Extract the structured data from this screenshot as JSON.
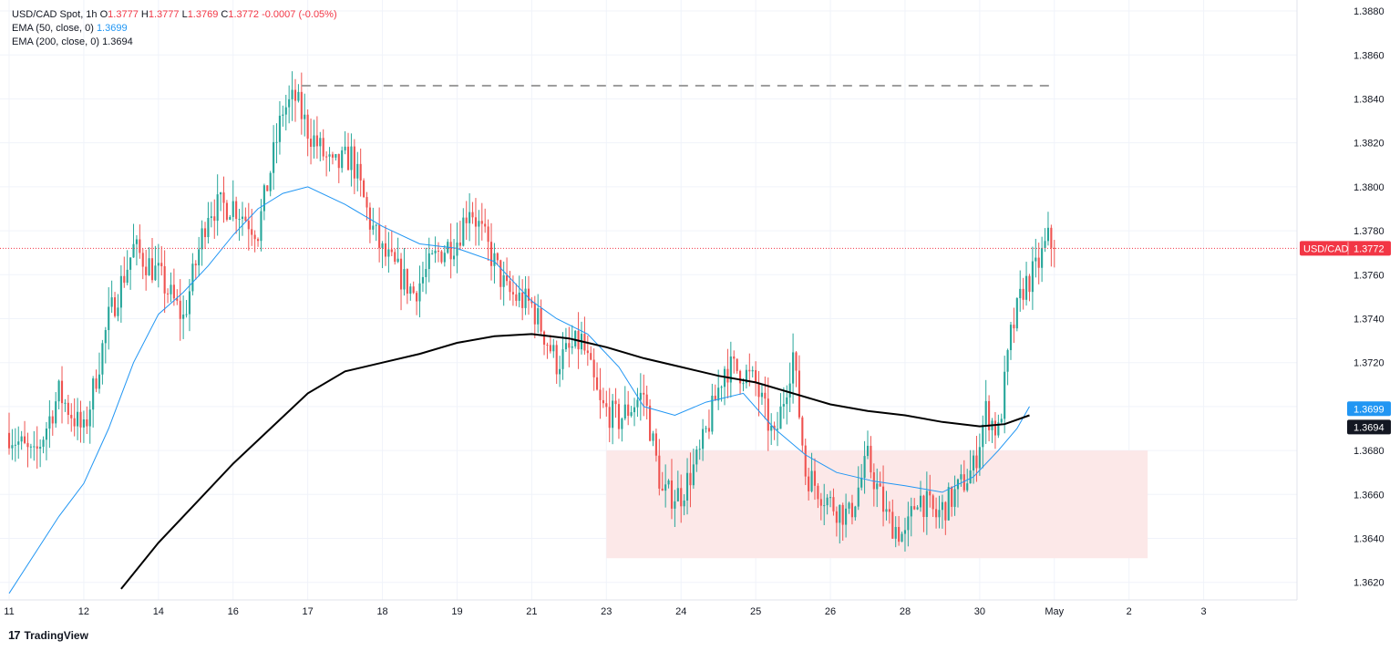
{
  "legend": {
    "symbol": "USD/CAD Spot, 1h",
    "o_label": "O",
    "o": "1.3777",
    "h_label": "H",
    "h": "1.3777",
    "l_label": "L",
    "l": "1.3769",
    "c_label": "C",
    "c": "1.3772",
    "change": "-0.0007 (-0.05%)",
    "ema50": "EMA (50, close, 0)",
    "ema50_value": "1.3699",
    "ema200": "EMA (200, close, 0)",
    "ema200_value": "1.3694"
  },
  "brand": {
    "name": "TradingView",
    "logo": "17"
  },
  "colors": {
    "up": "#26a69a",
    "down": "#ef5350",
    "ema50": "#2196f3",
    "ema200": "#000000",
    "price_line": "#f23645",
    "zone": "#fce8e8",
    "grid": "#f0f3fa",
    "resistance": "#9e9e9e"
  },
  "chart_data": {
    "type": "candlestick",
    "y_ticks": [
      "1.3620",
      "1.3640",
      "1.3660",
      "1.3680",
      "1.3700",
      "1.3720",
      "1.3740",
      "1.3760",
      "1.3780",
      "1.3800",
      "1.3820",
      "1.3840",
      "1.3860",
      "1.3880"
    ],
    "ylim": [
      1.3612,
      1.3885
    ],
    "x_ticks": [
      "11",
      "12",
      "14",
      "16",
      "17",
      "18",
      "19",
      "21",
      "23",
      "24",
      "25",
      "26",
      "28",
      "30",
      "May",
      "2",
      "3"
    ],
    "x_tick_index": [
      0,
      24,
      48,
      72,
      96,
      120,
      144,
      168,
      192,
      216,
      240,
      264,
      288,
      312,
      336,
      360,
      384
    ],
    "last_price": {
      "label": "USD/CAD",
      "value": "1.3772",
      "y": 1.3772
    },
    "ema50_tag": {
      "value": "1.3699",
      "y": 1.3699
    },
    "ema200_tag": {
      "value": "1.3694",
      "y": 1.3694
    },
    "resistance_level": {
      "y": 1.3846,
      "x_from": 94,
      "x_to": 336
    },
    "support_zone": {
      "y_from": 1.3631,
      "y_to": 1.368,
      "x_from": 192,
      "x_to": 366
    },
    "price_path": [
      [
        0,
        1.3688
      ],
      [
        8,
        1.3676
      ],
      [
        16,
        1.3706
      ],
      [
        24,
        1.3688
      ],
      [
        32,
        1.374
      ],
      [
        40,
        1.3772
      ],
      [
        48,
        1.376
      ],
      [
        56,
        1.374
      ],
      [
        64,
        1.379
      ],
      [
        72,
        1.3792
      ],
      [
        80,
        1.378
      ],
      [
        88,
        1.3835
      ],
      [
        92,
        1.384
      ],
      [
        96,
        1.3826
      ],
      [
        104,
        1.3808
      ],
      [
        110,
        1.3814
      ],
      [
        116,
        1.3784
      ],
      [
        120,
        1.377
      ],
      [
        130,
        1.3752
      ],
      [
        138,
        1.377
      ],
      [
        144,
        1.3776
      ],
      [
        148,
        1.3792
      ],
      [
        154,
        1.3772
      ],
      [
        160,
        1.3752
      ],
      [
        168,
        1.3746
      ],
      [
        176,
        1.372
      ],
      [
        184,
        1.373
      ],
      [
        190,
        1.37
      ],
      [
        196,
        1.3694
      ],
      [
        204,
        1.3706
      ],
      [
        210,
        1.366
      ],
      [
        216,
        1.366
      ],
      [
        222,
        1.3678
      ],
      [
        230,
        1.3718
      ],
      [
        236,
        1.3716
      ],
      [
        240,
        1.371
      ],
      [
        246,
        1.3684
      ],
      [
        252,
        1.3724
      ],
      [
        256,
        1.367
      ],
      [
        264,
        1.3656
      ],
      [
        270,
        1.365
      ],
      [
        276,
        1.3676
      ],
      [
        282,
        1.365
      ],
      [
        288,
        1.364
      ],
      [
        292,
        1.366
      ],
      [
        298,
        1.365
      ],
      [
        304,
        1.366
      ],
      [
        310,
        1.3672
      ],
      [
        314,
        1.3698
      ],
      [
        318,
        1.3688
      ],
      [
        322,
        1.3732
      ],
      [
        326,
        1.3754
      ],
      [
        330,
        1.3762
      ],
      [
        334,
        1.3776
      ],
      [
        336,
        1.3772
      ]
    ],
    "ema50_path": [
      [
        0,
        1.3615
      ],
      [
        16,
        1.365
      ],
      [
        24,
        1.3665
      ],
      [
        32,
        1.369
      ],
      [
        40,
        1.372
      ],
      [
        48,
        1.3742
      ],
      [
        56,
        1.3752
      ],
      [
        64,
        1.3764
      ],
      [
        72,
        1.3778
      ],
      [
        80,
        1.379
      ],
      [
        88,
        1.3797
      ],
      [
        96,
        1.38
      ],
      [
        108,
        1.3792
      ],
      [
        120,
        1.3782
      ],
      [
        132,
        1.3774
      ],
      [
        144,
        1.3772
      ],
      [
        156,
        1.3766
      ],
      [
        168,
        1.3748
      ],
      [
        176,
        1.374
      ],
      [
        186,
        1.3733
      ],
      [
        196,
        1.3718
      ],
      [
        204,
        1.37
      ],
      [
        214,
        1.3696
      ],
      [
        224,
        1.3702
      ],
      [
        236,
        1.3706
      ],
      [
        246,
        1.369
      ],
      [
        256,
        1.3678
      ],
      [
        266,
        1.367
      ],
      [
        278,
        1.3666
      ],
      [
        288,
        1.3664
      ],
      [
        300,
        1.3661
      ],
      [
        310,
        1.3668
      ],
      [
        318,
        1.368
      ],
      [
        324,
        1.369
      ],
      [
        328,
        1.37
      ]
    ],
    "ema200_path": [
      [
        36,
        1.3617
      ],
      [
        48,
        1.3638
      ],
      [
        60,
        1.3656
      ],
      [
        72,
        1.3674
      ],
      [
        84,
        1.369
      ],
      [
        96,
        1.3706
      ],
      [
        108,
        1.3716
      ],
      [
        120,
        1.372
      ],
      [
        132,
        1.3724
      ],
      [
        144,
        1.3729
      ],
      [
        156,
        1.3732
      ],
      [
        168,
        1.3733
      ],
      [
        180,
        1.3731
      ],
      [
        192,
        1.3727
      ],
      [
        204,
        1.3722
      ],
      [
        216,
        1.3718
      ],
      [
        228,
        1.3714
      ],
      [
        240,
        1.3711
      ],
      [
        252,
        1.3706
      ],
      [
        264,
        1.3701
      ],
      [
        276,
        1.3698
      ],
      [
        288,
        1.3696
      ],
      [
        300,
        1.3693
      ],
      [
        312,
        1.3691
      ],
      [
        320,
        1.3692
      ],
      [
        328,
        1.3696
      ]
    ]
  }
}
